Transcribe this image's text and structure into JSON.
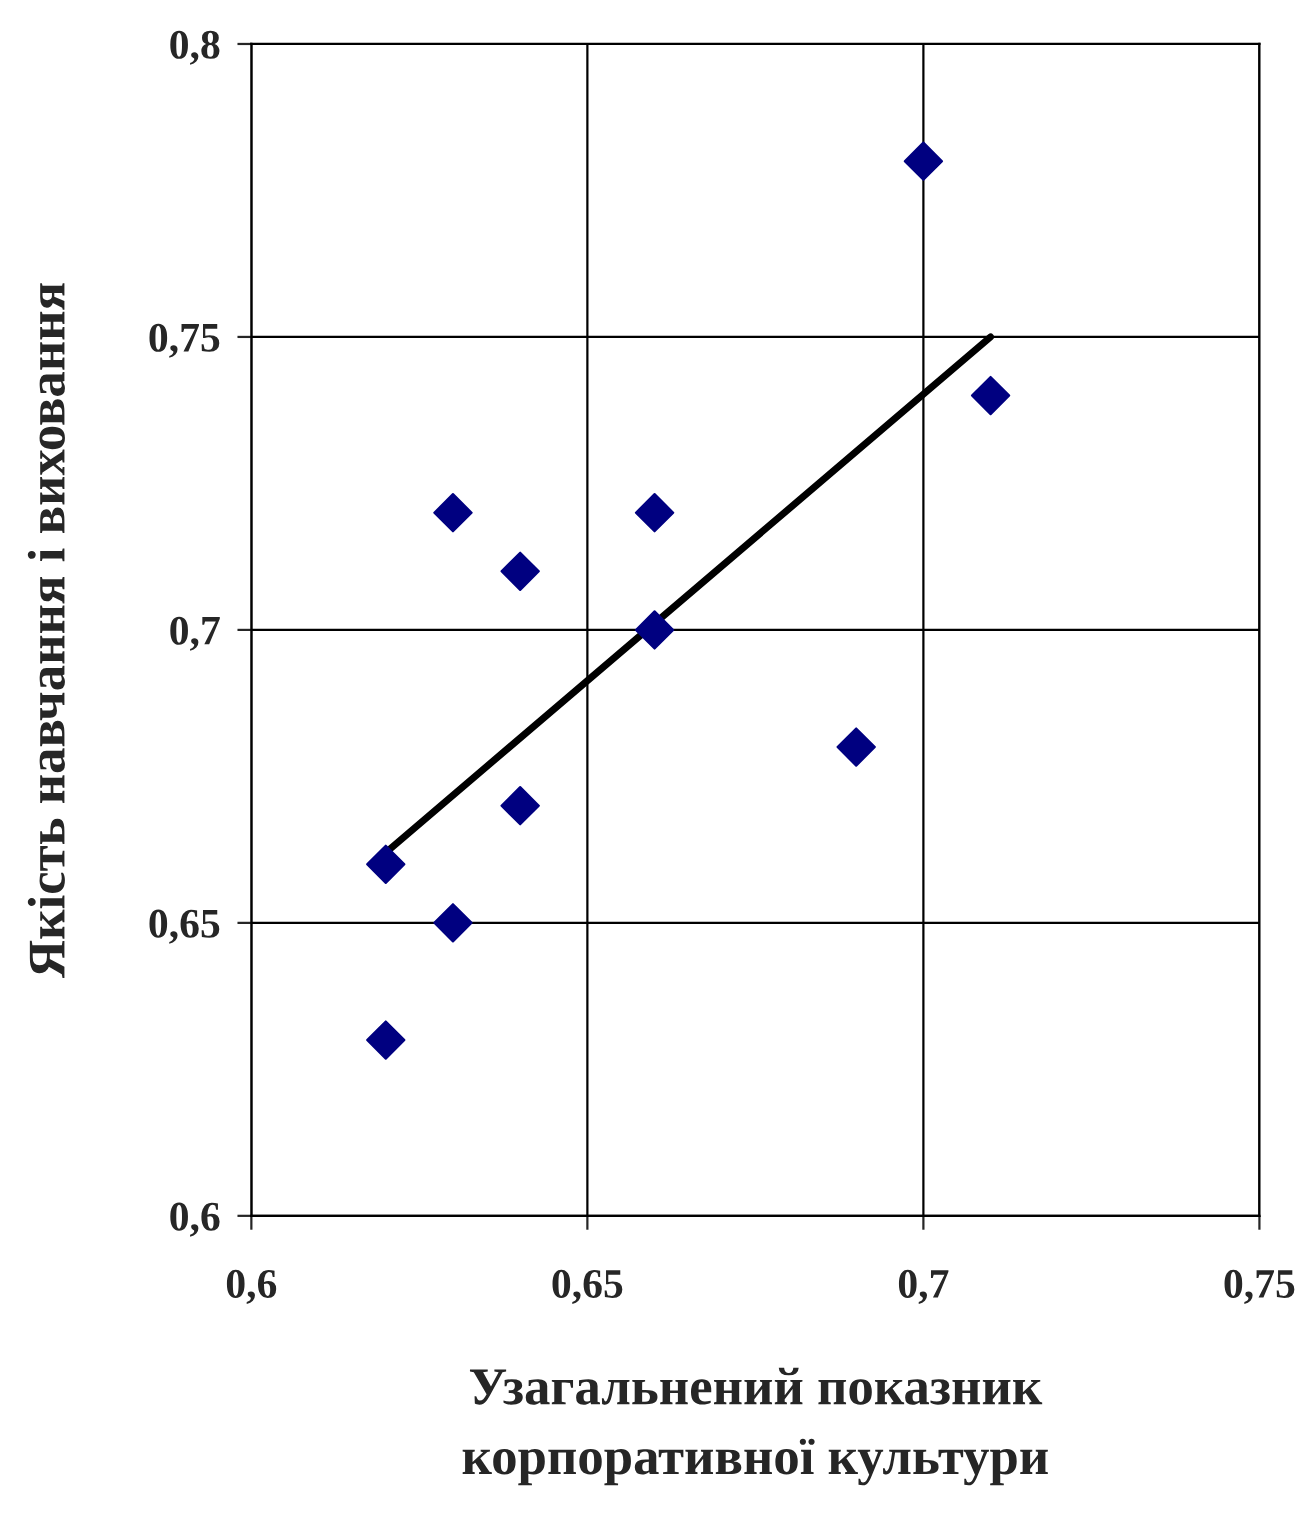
{
  "chart_data": {
    "type": "scatter",
    "xlabel": "Узагальнений показник\nкорпоративної культури",
    "ylabel": "Якість навчання і виховання",
    "xlim": [
      0.6,
      0.75
    ],
    "ylim": [
      0.6,
      0.8
    ],
    "xticks": [
      {
        "value": 0.6,
        "label": "0,6"
      },
      {
        "value": 0.65,
        "label": "0,65"
      },
      {
        "value": 0.7,
        "label": "0,7"
      },
      {
        "value": 0.75,
        "label": "0,75"
      }
    ],
    "yticks": [
      {
        "value": 0.6,
        "label": "0,6"
      },
      {
        "value": 0.65,
        "label": "0,65"
      },
      {
        "value": 0.7,
        "label": "0,7"
      },
      {
        "value": 0.75,
        "label": "0,75"
      },
      {
        "value": 0.8,
        "label": "0,8"
      }
    ],
    "grid": true,
    "series": [
      {
        "marker": "diamond",
        "color": "#000080",
        "x": [
          0.62,
          0.62,
          0.63,
          0.63,
          0.64,
          0.64,
          0.66,
          0.66,
          0.69,
          0.7,
          0.71
        ],
        "values": [
          0.66,
          0.63,
          0.72,
          0.65,
          0.71,
          0.67,
          0.72,
          0.7,
          0.68,
          0.78,
          0.74
        ]
      },
      {
        "type": "line",
        "marker": "none",
        "color": "#000000",
        "x": [
          0.62,
          0.71
        ],
        "values": [
          0.662,
          0.75
        ]
      }
    ]
  }
}
